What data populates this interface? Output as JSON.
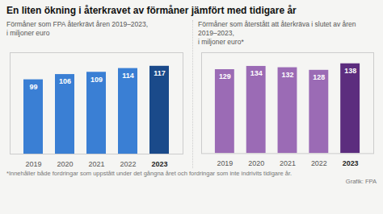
{
  "title": "En liten ökning i återkravet av förmåner jämfört med tidigare år",
  "annotations": [
    "*Innehåller både fordringar som uppstått under det gångna året och fordringar som inte indrivits tidigare år.",
    "Grafik: FPA"
  ],
  "chart_data": [
    {
      "type": "bar",
      "subtitle": "Förmåner som FPA återkrävt åren 2019–2023,\ni miljoner euro",
      "categories": [
        "2019",
        "2020",
        "2021",
        "2022",
        "2023"
      ],
      "values": [
        99,
        106,
        109,
        114,
        117
      ],
      "colors": [
        "#3a7fd4",
        "#3a7fd4",
        "#3a7fd4",
        "#3a7fd4",
        "#1a4a8a"
      ],
      "ylim": [
        0,
        135
      ],
      "data_labels": true,
      "tick_labels": "x",
      "grid": false
    },
    {
      "type": "bar",
      "subtitle": "Förmåner som återstått att återkräva i slutet av åren 2019–2023,\ni miljoner euro*",
      "categories": [
        "2019",
        "2020",
        "2021",
        "2022",
        "2023"
      ],
      "values": [
        129,
        134,
        132,
        128,
        138
      ],
      "colors": [
        "#9b6bb5",
        "#9b6bb5",
        "#9b6bb5",
        "#9b6bb5",
        "#5c2d7e"
      ],
      "ylim": [
        0,
        155
      ],
      "data_labels": true,
      "tick_labels": "x",
      "grid": false
    }
  ]
}
